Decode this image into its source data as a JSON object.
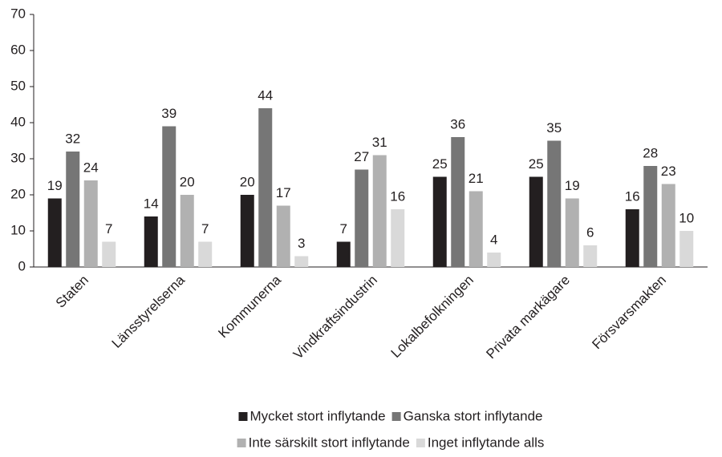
{
  "chart_data": {
    "type": "bar",
    "categories": [
      "Staten",
      "Länsstyrelserna",
      "Kommunerna",
      "Vindkraftsindustrin",
      "Lokalbefolkningen",
      "Privata markägare",
      "Försvarsmakten"
    ],
    "series": [
      {
        "name": "Mycket stort inflytande",
        "color": "#231f20",
        "values": [
          19,
          14,
          20,
          7,
          25,
          25,
          16
        ]
      },
      {
        "name": "Ganska stort inflytande",
        "color": "#767676",
        "values": [
          32,
          39,
          44,
          27,
          36,
          35,
          28
        ]
      },
      {
        "name": "Inte särskilt stort inflytande",
        "color": "#b1b1b1",
        "values": [
          24,
          20,
          17,
          31,
          21,
          19,
          23
        ]
      },
      {
        "name": "Inget inflytande alls",
        "color": "#d9d9d9",
        "values": [
          7,
          7,
          3,
          16,
          4,
          6,
          10
        ]
      }
    ],
    "ylim": [
      0,
      70
    ],
    "yticks": [
      0,
      10,
      20,
      30,
      40,
      50,
      60,
      70
    ],
    "grid": false,
    "legend": "bottom"
  }
}
